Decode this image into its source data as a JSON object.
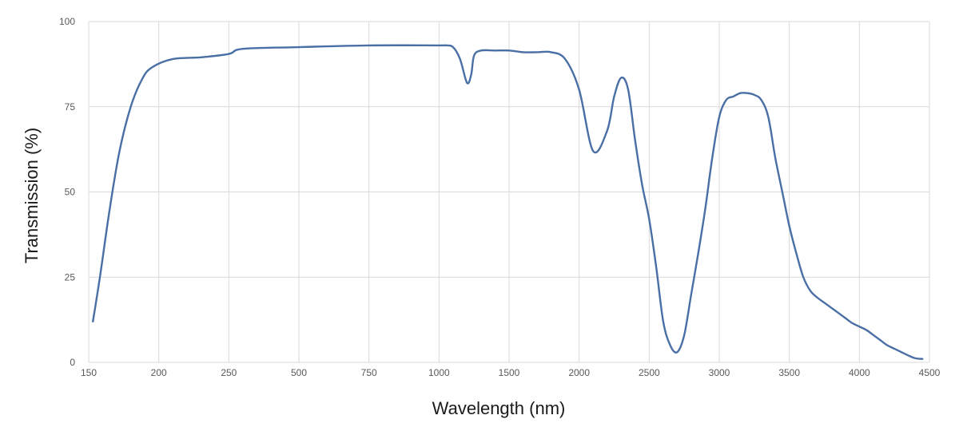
{
  "chart_data": {
    "type": "line",
    "title": "",
    "xlabel": "Wavelength (nm)",
    "ylabel": "Transmission (%)",
    "x_scale": "category-spaced",
    "x_ticks": [
      150,
      200,
      250,
      500,
      750,
      1000,
      1500,
      2000,
      2500,
      3000,
      3500,
      4000,
      4500
    ],
    "y_ticks": [
      0,
      25,
      50,
      75,
      100
    ],
    "ylim": [
      0,
      100
    ],
    "grid": true,
    "legend": "none",
    "colors": {
      "series": "#4a6fa5",
      "grid": "#d9d9d9",
      "tick_text": "#595959"
    },
    "series": [
      {
        "x": [
          153,
          158,
          165,
          172,
          180,
          188,
          195,
          210,
          230,
          250,
          300,
          500,
          750,
          1000,
          1050,
          1100,
          1150,
          1200,
          1230,
          1250,
          1300,
          1400,
          1500,
          1600,
          1700,
          1800,
          1900,
          2000,
          2100,
          2200,
          2250,
          2300,
          2350,
          2400,
          2450,
          2500,
          2550,
          2600,
          2650,
          2700,
          2750,
          2800,
          2850,
          2900,
          2950,
          3000,
          3050,
          3100,
          3150,
          3200,
          3250,
          3300,
          3350,
          3400,
          3450,
          3500,
          3550,
          3600,
          3650,
          3700,
          3750,
          3800,
          3850,
          3900,
          3950,
          4000,
          4050,
          4100,
          4150,
          4200,
          4250,
          4300,
          4350,
          4400,
          4450
        ],
        "y": [
          12,
          25,
          45,
          62,
          75,
          83,
          86.5,
          89,
          89.5,
          90.5,
          92,
          92.5,
          93,
          93,
          93,
          92.5,
          89,
          82,
          84.5,
          90,
          91.5,
          91.5,
          91.5,
          91,
          91,
          91,
          89,
          80,
          62,
          68,
          78,
          83.5,
          80,
          65,
          52,
          42,
          28,
          12,
          5,
          3,
          8,
          20,
          32,
          45,
          60,
          72,
          77,
          78,
          79,
          79,
          78.5,
          77,
          72,
          60,
          50,
          40,
          32,
          25,
          21,
          19,
          17.5,
          16,
          14.5,
          13,
          11.5,
          10.5,
          9.5,
          8,
          6.5,
          5,
          4,
          3,
          2,
          1.2,
          1
        ]
      }
    ]
  }
}
